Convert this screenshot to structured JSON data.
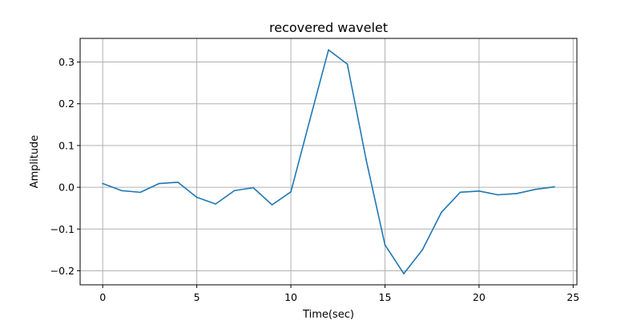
{
  "chart_data": {
    "type": "line",
    "title": "recovered wavelet",
    "xlabel": "Time(sec)",
    "ylabel": "Amplitude",
    "xlim": [
      -1.2,
      25.2
    ],
    "ylim": [
      -0.2336,
      0.3566
    ],
    "xticks": [
      0,
      5,
      10,
      15,
      20,
      25
    ],
    "xtick_labels": [
      "0",
      "5",
      "10",
      "15",
      "20",
      "25"
    ],
    "yticks": [
      -0.2,
      -0.1,
      0.0,
      0.1,
      0.2,
      0.3
    ],
    "ytick_labels": [
      "−0.2",
      "−0.1",
      "0.0",
      "0.1",
      "0.2",
      "0.3"
    ],
    "grid": true,
    "series": [
      {
        "color": "#1f77b4",
        "x": [
          0,
          1,
          2,
          3,
          4,
          5,
          6,
          7,
          8,
          9,
          10,
          11,
          12,
          13,
          14,
          15,
          16,
          17,
          18,
          19,
          20,
          21,
          22,
          23,
          24
        ],
        "y": [
          0.009,
          -0.008,
          -0.012,
          0.009,
          0.012,
          -0.024,
          -0.04,
          -0.008,
          -0.001,
          -0.042,
          -0.011,
          0.16,
          0.329,
          0.295,
          0.066,
          -0.138,
          -0.207,
          -0.149,
          -0.06,
          -0.012,
          -0.009,
          -0.018,
          -0.015,
          -0.005,
          0.001
        ]
      }
    ]
  }
}
